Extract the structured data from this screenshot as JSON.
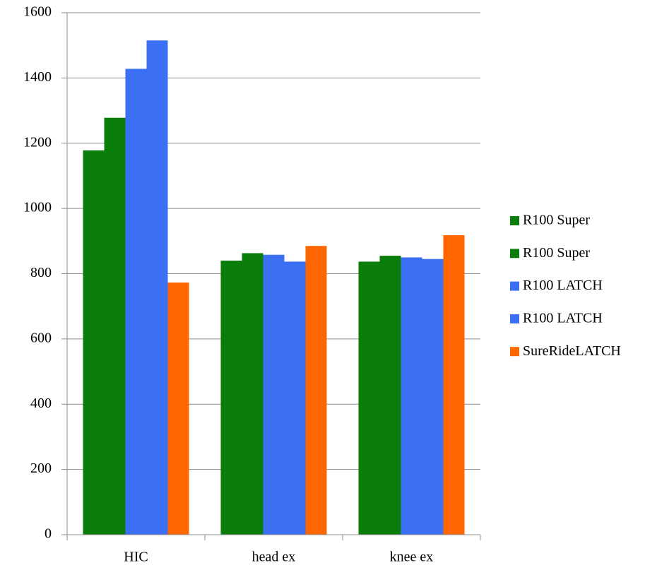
{
  "chart_data": {
    "type": "bar",
    "categories": [
      "HIC",
      "head ex",
      "knee ex"
    ],
    "series": [
      {
        "name": "R100 Super",
        "color": "#0b7d0b",
        "values": [
          1178,
          840,
          837
        ]
      },
      {
        "name": "R100 Super",
        "color": "#0b7d0b",
        "values": [
          1278,
          863,
          855
        ]
      },
      {
        "name": "R100 LATCH",
        "color": "#3b6ff4",
        "values": [
          1428,
          858,
          850
        ]
      },
      {
        "name": "R100 LATCH",
        "color": "#3b6ff4",
        "values": [
          1515,
          837,
          845
        ]
      },
      {
        "name": "SureRideLATCH",
        "color": "#ff6600",
        "values": [
          773,
          885,
          918
        ]
      }
    ],
    "ylim": [
      0,
      1600
    ],
    "yticks": [
      0,
      200,
      400,
      600,
      800,
      1000,
      1200,
      1400,
      1600
    ],
    "grid": true,
    "legend": "right"
  }
}
